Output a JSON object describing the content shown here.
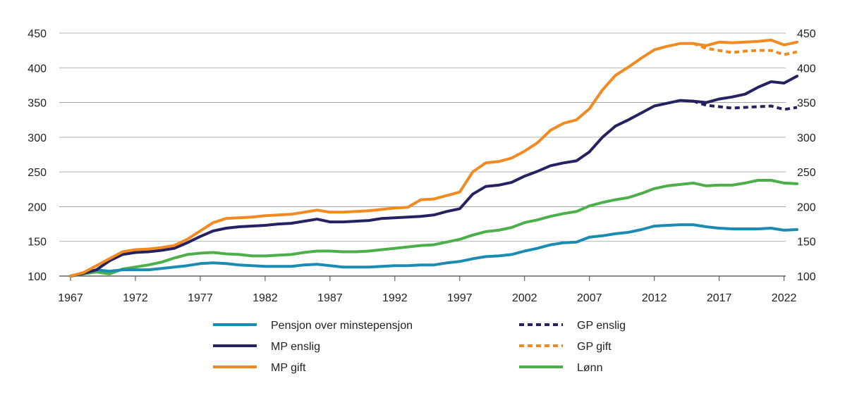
{
  "chart_data": {
    "type": "line",
    "title": "",
    "xlabel": "",
    "ylabel": "",
    "ylim": [
      100,
      450
    ],
    "yticks": [
      100,
      150,
      200,
      250,
      300,
      350,
      400,
      450
    ],
    "xlim": [
      1967,
      2023
    ],
    "xticks": [
      1967,
      1972,
      1977,
      1982,
      1987,
      1992,
      1997,
      2002,
      2007,
      2012,
      2017,
      2022
    ],
    "grid": true,
    "secondary_y_axis": true,
    "legend_position": "bottom",
    "series": [
      {
        "name": "Pensjon over minstepensjon",
        "color": "#1b8bb4",
        "style": "solid",
        "x": [
          1967,
          1968,
          1969,
          1970,
          1971,
          1972,
          1973,
          1974,
          1975,
          1976,
          1977,
          1978,
          1979,
          1980,
          1981,
          1982,
          1983,
          1984,
          1985,
          1986,
          1987,
          1988,
          1989,
          1990,
          1991,
          1992,
          1993,
          1994,
          1995,
          1996,
          1997,
          1998,
          1999,
          2000,
          2001,
          2002,
          2003,
          2004,
          2005,
          2006,
          2007,
          2008,
          2009,
          2010,
          2011,
          2012,
          2013,
          2014,
          2015,
          2016,
          2017,
          2018,
          2019,
          2020,
          2021,
          2022,
          2023
        ],
        "values": [
          100,
          104,
          109,
          107,
          109,
          109,
          109,
          111,
          113,
          115,
          118,
          119,
          118,
          116,
          115,
          114,
          114,
          114,
          116,
          117,
          115,
          113,
          113,
          113,
          114,
          115,
          115,
          116,
          116,
          119,
          121,
          125,
          128,
          129,
          131,
          136,
          140,
          145,
          148,
          149,
          156,
          158,
          161,
          163,
          167,
          172,
          173,
          174,
          174,
          171,
          169,
          168,
          168,
          168,
          169,
          166,
          167
        ]
      },
      {
        "name": "MP enslig",
        "color": "#262262",
        "style": "solid",
        "x": [
          1967,
          1968,
          1969,
          1970,
          1971,
          1972,
          1973,
          1974,
          1975,
          1976,
          1977,
          1978,
          1979,
          1980,
          1981,
          1982,
          1983,
          1984,
          1985,
          1986,
          1987,
          1988,
          1989,
          1990,
          1991,
          1992,
          1993,
          1994,
          1995,
          1996,
          1997,
          1998,
          1999,
          2000,
          2001,
          2002,
          2003,
          2004,
          2005,
          2006,
          2007,
          2008,
          2009,
          2010,
          2011,
          2012,
          2013,
          2014,
          2015,
          2016,
          2017,
          2018,
          2019,
          2020,
          2021,
          2022,
          2023
        ],
        "values": [
          100,
          104,
          109,
          122,
          131,
          134,
          135,
          137,
          140,
          148,
          157,
          165,
          169,
          171,
          172,
          173,
          175,
          176,
          179,
          182,
          178,
          178,
          179,
          180,
          183,
          184,
          185,
          186,
          188,
          193,
          197,
          218,
          229,
          231,
          235,
          244,
          251,
          259,
          263,
          266,
          279,
          300,
          316,
          325,
          335,
          345,
          349,
          353,
          352,
          350,
          355,
          358,
          362,
          372,
          380,
          378,
          388
        ]
      },
      {
        "name": "MP gift",
        "color": "#f28a22",
        "style": "solid",
        "x": [
          1967,
          1968,
          1969,
          1970,
          1971,
          1972,
          1973,
          1974,
          1975,
          1976,
          1977,
          1978,
          1979,
          1980,
          1981,
          1982,
          1983,
          1984,
          1985,
          1986,
          1987,
          1988,
          1989,
          1990,
          1991,
          1992,
          1993,
          1994,
          1995,
          1996,
          1997,
          1998,
          1999,
          2000,
          2001,
          2002,
          2003,
          2004,
          2005,
          2006,
          2007,
          2008,
          2009,
          2010,
          2011,
          2012,
          2013,
          2014,
          2015,
          2016,
          2017,
          2018,
          2019,
          2020,
          2021,
          2022,
          2023
        ],
        "values": [
          100,
          105,
          115,
          125,
          135,
          138,
          139,
          141,
          144,
          153,
          165,
          177,
          183,
          184,
          185,
          187,
          188,
          189,
          192,
          195,
          192,
          192,
          193,
          194,
          196,
          198,
          199,
          210,
          211,
          216,
          221,
          250,
          263,
          265,
          270,
          280,
          292,
          310,
          320,
          325,
          341,
          368,
          389,
          401,
          414,
          426,
          431,
          435,
          435,
          432,
          437,
          436,
          437,
          438,
          440,
          433,
          437
        ]
      },
      {
        "name": "GP enslig",
        "color": "#262262",
        "style": "dashed",
        "x": [
          2015,
          2016,
          2017,
          2018,
          2019,
          2020,
          2021,
          2022,
          2023
        ],
        "values": [
          352,
          346,
          344,
          342,
          343,
          344,
          345,
          340,
          343
        ]
      },
      {
        "name": "GP gift",
        "color": "#f28a22",
        "style": "dashed",
        "x": [
          2015,
          2016,
          2017,
          2018,
          2019,
          2020,
          2021,
          2022,
          2023
        ],
        "values": [
          435,
          428,
          425,
          422,
          424,
          425,
          425,
          419,
          423
        ]
      },
      {
        "name": "Lønn",
        "color": "#4daf4a",
        "style": "solid",
        "x": [
          1967,
          1968,
          1969,
          1970,
          1971,
          1972,
          1973,
          1974,
          1975,
          1976,
          1977,
          1978,
          1979,
          1980,
          1981,
          1982,
          1983,
          1984,
          1985,
          1986,
          1987,
          1988,
          1989,
          1990,
          1991,
          1992,
          1993,
          1994,
          1995,
          1996,
          1997,
          1998,
          1999,
          2000,
          2001,
          2002,
          2003,
          2004,
          2005,
          2006,
          2007,
          2008,
          2009,
          2010,
          2011,
          2012,
          2013,
          2014,
          2015,
          2016,
          2017,
          2018,
          2019,
          2020,
          2021,
          2022,
          2023
        ],
        "values": [
          100,
          103,
          106,
          103,
          110,
          113,
          116,
          120,
          126,
          131,
          133,
          134,
          132,
          131,
          129,
          129,
          130,
          131,
          134,
          136,
          136,
          135,
          135,
          136,
          138,
          140,
          142,
          144,
          145,
          149,
          153,
          159,
          164,
          166,
          170,
          177,
          181,
          186,
          190,
          193,
          201,
          206,
          210,
          213,
          219,
          226,
          230,
          232,
          234,
          230,
          231,
          231,
          234,
          238,
          238,
          234,
          233
        ]
      }
    ]
  },
  "legend": {
    "items": [
      {
        "label": "Pensjon over minstepensjon",
        "color": "#1b8bb4",
        "style": "solid"
      },
      {
        "label": "GP enslig",
        "color": "#262262",
        "style": "dashed"
      },
      {
        "label": "MP enslig",
        "color": "#262262",
        "style": "solid"
      },
      {
        "label": "GP gift",
        "color": "#f28a22",
        "style": "dashed"
      },
      {
        "label": "MP gift",
        "color": "#f28a22",
        "style": "solid"
      },
      {
        "label": "Lønn",
        "color": "#4daf4a",
        "style": "solid"
      }
    ]
  }
}
